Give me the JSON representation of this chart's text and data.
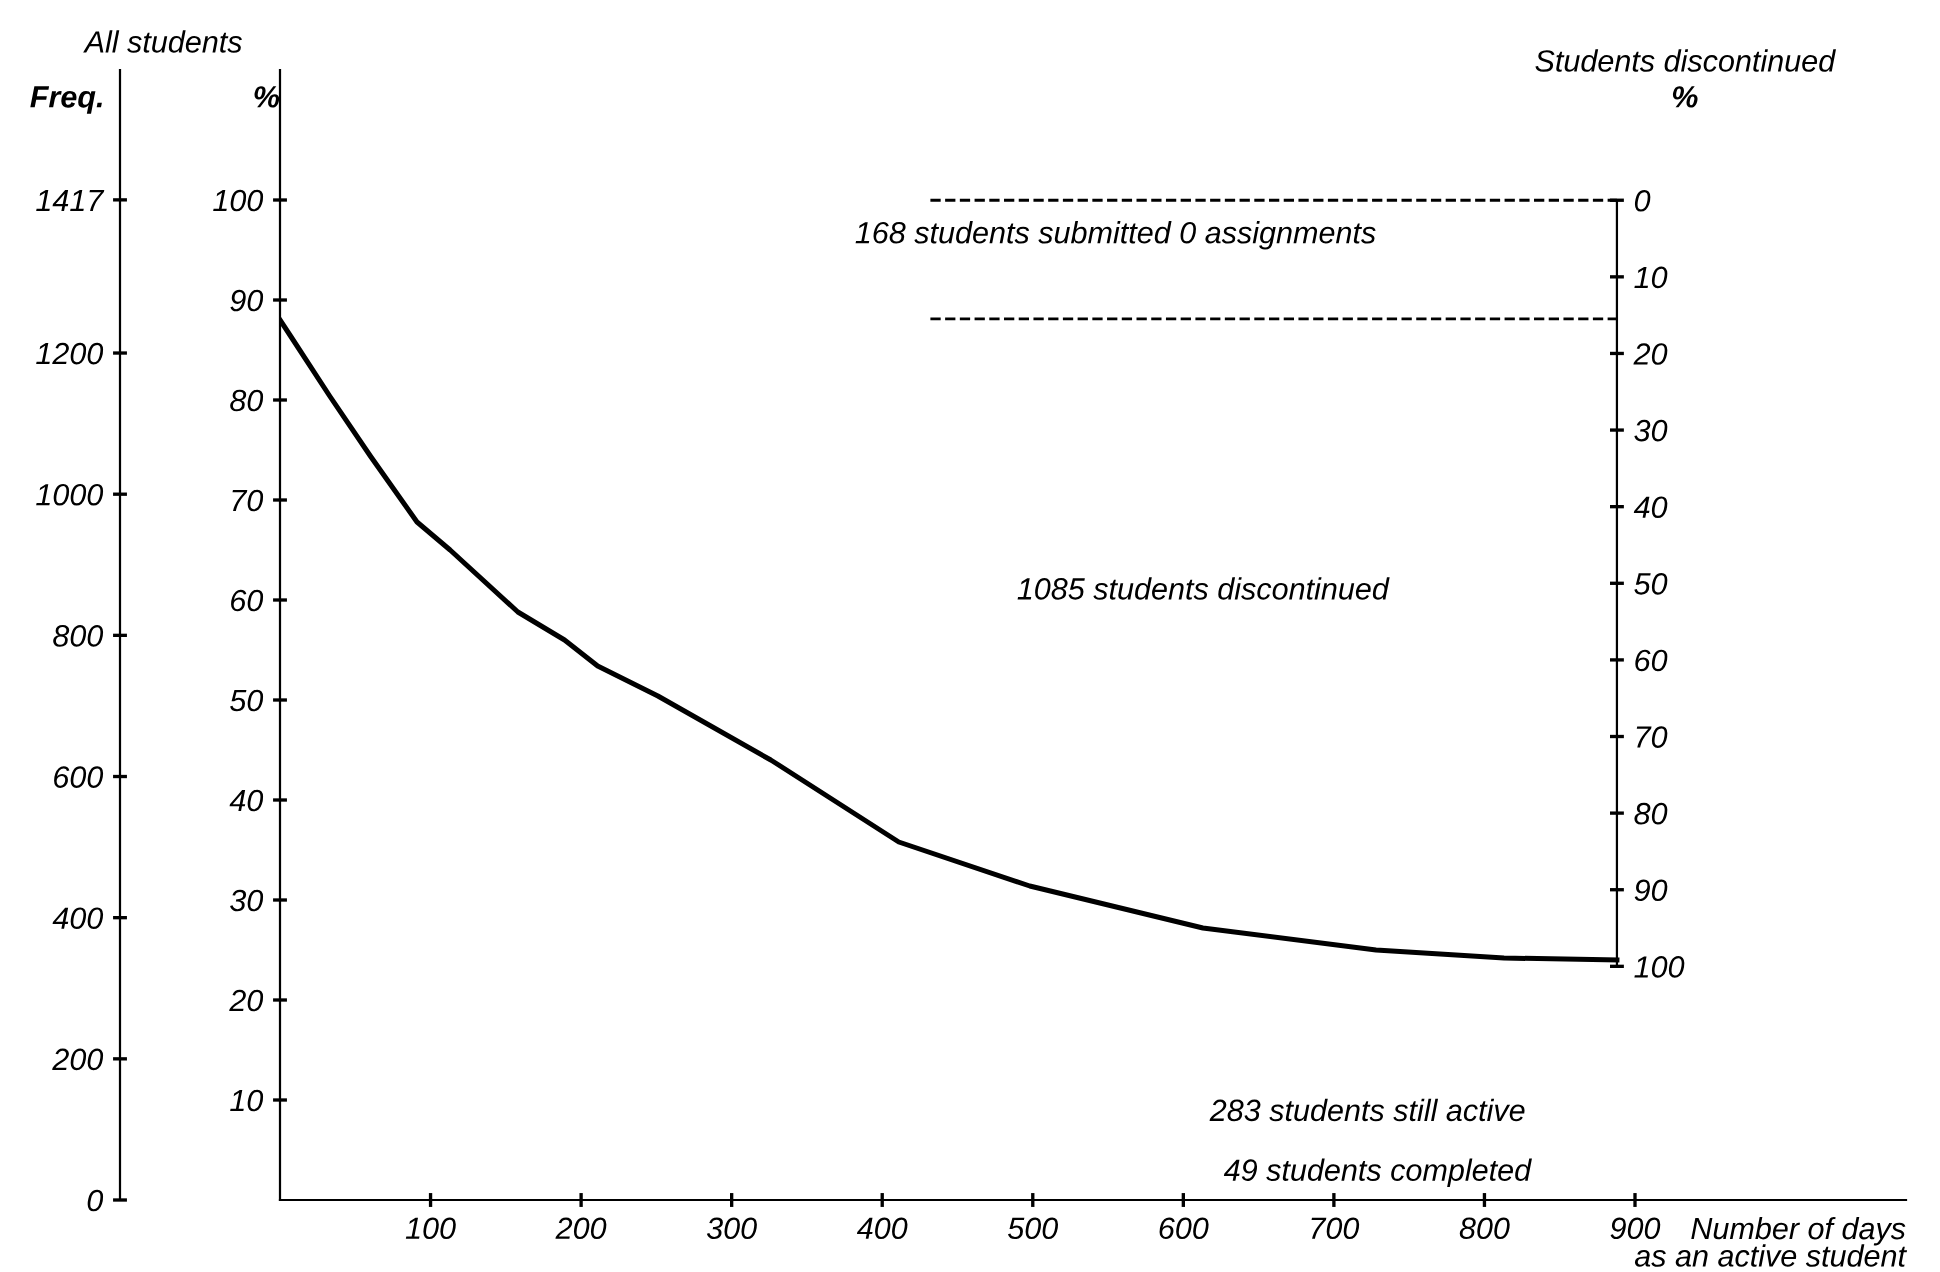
{
  "chart_data": {
    "type": "line",
    "x": [
      0,
      7,
      33,
      60,
      91,
      113,
      158,
      189,
      211,
      251,
      326,
      411,
      498,
      613,
      728,
      813,
      888
    ],
    "series": [
      {
        "color": "#000000",
        "values": [
          88,
          86.4,
          80.4,
          74.4,
          67.8,
          65,
          58.8,
          56,
          53.4,
          50.4,
          44,
          35.8,
          31.4,
          27.2,
          25,
          24.2,
          24
        ]
      }
    ],
    "xlim": [
      0,
      1080
    ],
    "xticks": [
      100,
      200,
      300,
      400,
      500,
      600,
      700,
      800,
      900
    ],
    "ylim": [
      0,
      113
    ],
    "yticks": [
      10,
      20,
      30,
      40,
      50,
      60,
      70,
      80,
      90,
      100
    ],
    "y2lim": [
      130.5,
      -17
    ],
    "y2ticks": [
      0,
      10,
      20,
      30,
      40,
      50,
      60,
      70,
      80,
      90,
      100
    ],
    "y3lim": [
      0,
      1601
    ],
    "y3ticks": [
      0,
      200,
      400,
      600,
      800,
      1000,
      1200,
      1417
    ],
    "xlabel": "Number of days\nas an active student",
    "ylabel": "%",
    "y2label": "%",
    "y3label": "Freq.",
    "ref_lines": [
      {
        "axis": "y2",
        "value": 0,
        "line_style": "dashed",
        "color": "#000000"
      },
      {
        "axis": "y2",
        "value": 15.5,
        "line_style": "dashed",
        "color": "#000000"
      }
    ],
    "annotations": [
      "All students",
      "Students discontinued",
      "168 students submitted 0 assignments",
      "1085 students discontinued",
      "283 students still active",
      "49 students completed"
    ],
    "grid": false,
    "marker": "none",
    "line_style": "solid"
  }
}
